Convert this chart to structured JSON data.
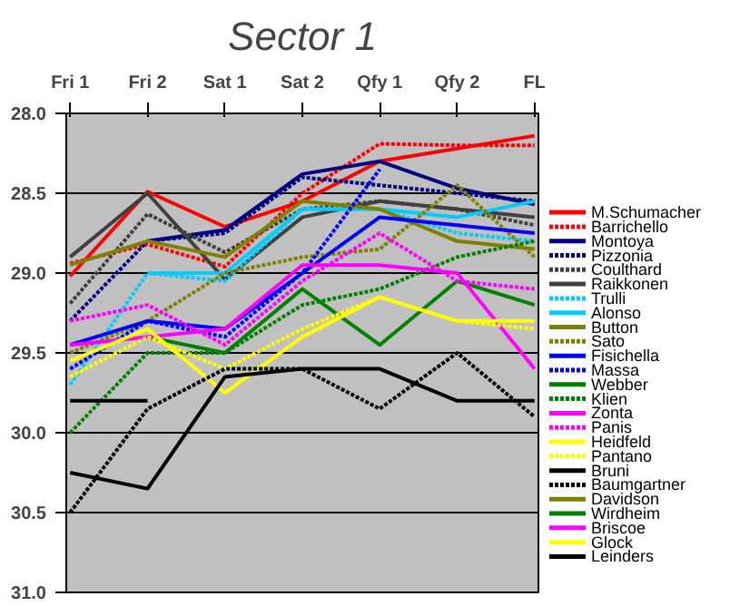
{
  "chart_data": {
    "type": "line",
    "title": "Sector 1",
    "categories": [
      "Fri 1",
      "Fri 2",
      "Sat 1",
      "Sat 2",
      "Qfy 1",
      "Qfy 2",
      "FL"
    ],
    "ylim": [
      31.0,
      28.0
    ],
    "yticks": [
      {
        "value": 28.0,
        "label": "28.0"
      },
      {
        "value": 28.5,
        "label": "28.5"
      },
      {
        "value": 29.0,
        "label": "29.0"
      },
      {
        "value": 29.5,
        "label": "29.5"
      },
      {
        "value": 30.0,
        "label": "30.0"
      },
      {
        "value": 30.5,
        "label": "30.5"
      },
      {
        "value": 31.0,
        "label": "31.0"
      }
    ],
    "grid": "y",
    "legend": "right",
    "marker": "none",
    "series": [
      {
        "name": "M.Schumacher",
        "color": "#ff0000",
        "values": [
          29.02,
          28.49,
          28.71,
          28.55,
          28.3,
          28.22,
          28.14
        ]
      },
      {
        "name": "Barrichello",
        "color": "#ff0000",
        "line_style": "dotted",
        "values": [
          28.94,
          28.82,
          28.96,
          28.5,
          28.19,
          28.2,
          28.2
        ]
      },
      {
        "name": "Montoya",
        "color": "#000080",
        "values": [
          null,
          28.8,
          28.73,
          28.38,
          28.3,
          28.47,
          28.57
        ]
      },
      {
        "name": "Pizzonia",
        "color": "#000080",
        "line_style": "dotted",
        "values": [
          29.3,
          28.8,
          28.75,
          28.4,
          28.45,
          28.5,
          28.55
        ]
      },
      {
        "name": "Coulthard",
        "color": "#404040",
        "line_style": "dotted",
        "values": [
          29.19,
          28.63,
          28.87,
          28.6,
          28.55,
          28.6,
          28.7
        ]
      },
      {
        "name": "Raikkonen",
        "color": "#404040",
        "values": [
          28.9,
          28.5,
          29.04,
          28.65,
          28.55,
          28.6,
          28.65
        ]
      },
      {
        "name": "Trulli",
        "color": "#00ccff",
        "line_style": "dotted",
        "values": [
          29.7,
          29.0,
          29.05,
          28.6,
          28.6,
          28.75,
          28.8
        ]
      },
      {
        "name": "Alonso",
        "color": "#00ccff",
        "values": [
          null,
          29.0,
          29.0,
          28.6,
          28.6,
          28.65,
          28.55
        ]
      },
      {
        "name": "Button",
        "color": "#808000",
        "values": [
          28.95,
          28.8,
          28.9,
          28.55,
          28.6,
          28.8,
          28.85
        ]
      },
      {
        "name": "Sato",
        "color": "#808000",
        "line_style": "dotted",
        "values": [
          29.5,
          29.3,
          29.0,
          28.9,
          28.85,
          28.45,
          28.9
        ]
      },
      {
        "name": "Fisichella",
        "color": "#0000ff",
        "values": [
          29.45,
          29.3,
          29.35,
          29.0,
          28.65,
          28.7,
          28.75
        ]
      },
      {
        "name": "Massa",
        "color": "#0000ff",
        "line_style": "dotted",
        "values": [
          29.6,
          29.3,
          29.4,
          29.0,
          28.35,
          null,
          null
        ]
      },
      {
        "name": "Webber",
        "color": "#008000",
        "values": [
          null,
          29.4,
          29.5,
          29.1,
          29.45,
          29.05,
          29.2
        ]
      },
      {
        "name": "Klien",
        "color": "#008000",
        "line_style": "dotted",
        "values": [
          30.0,
          29.5,
          29.5,
          29.2,
          29.1,
          28.9,
          28.8
        ]
      },
      {
        "name": "Zonta",
        "color": "#ff00ff",
        "values": [
          29.45,
          29.4,
          29.35,
          28.95,
          28.95,
          29.0,
          29.6
        ]
      },
      {
        "name": "Panis",
        "color": "#ff00ff",
        "line_style": "dotted",
        "values": [
          29.3,
          29.2,
          29.45,
          29.05,
          28.75,
          29.05,
          29.1
        ]
      },
      {
        "name": "Heidfeld",
        "color": "#ffff00",
        "values": [
          29.55,
          29.35,
          29.75,
          29.4,
          29.15,
          29.3,
          29.3
        ]
      },
      {
        "name": "Pantano",
        "color": "#ffff00",
        "line_style": "dotted",
        "values": [
          29.65,
          29.4,
          29.6,
          29.35,
          29.15,
          29.3,
          29.35
        ]
      },
      {
        "name": "Bruni",
        "color": "#000000",
        "values": [
          30.25,
          30.35,
          29.65,
          29.6,
          29.6,
          29.8,
          29.8
        ]
      },
      {
        "name": "Baumgartner",
        "color": "#000000",
        "line_style": "dotted",
        "values": [
          30.5,
          29.85,
          29.6,
          29.6,
          29.85,
          29.5,
          29.9
        ]
      },
      {
        "name": "Davidson",
        "color": "#808000",
        "values": [
          null,
          null,
          null,
          null,
          null,
          null,
          null
        ]
      },
      {
        "name": "Wirdheim",
        "color": "#008000",
        "values": [
          null,
          null,
          null,
          null,
          null,
          null,
          null
        ]
      },
      {
        "name": "Briscoe",
        "color": "#ff00ff",
        "values": [
          null,
          null,
          null,
          null,
          null,
          null,
          null
        ]
      },
      {
        "name": "Glock",
        "color": "#ffff00",
        "values": [
          null,
          null,
          null,
          null,
          null,
          null,
          null
        ]
      },
      {
        "name": "Leinders",
        "color": "#000000",
        "values": [
          29.8,
          29.8,
          null,
          null,
          null,
          null,
          null
        ]
      }
    ]
  }
}
